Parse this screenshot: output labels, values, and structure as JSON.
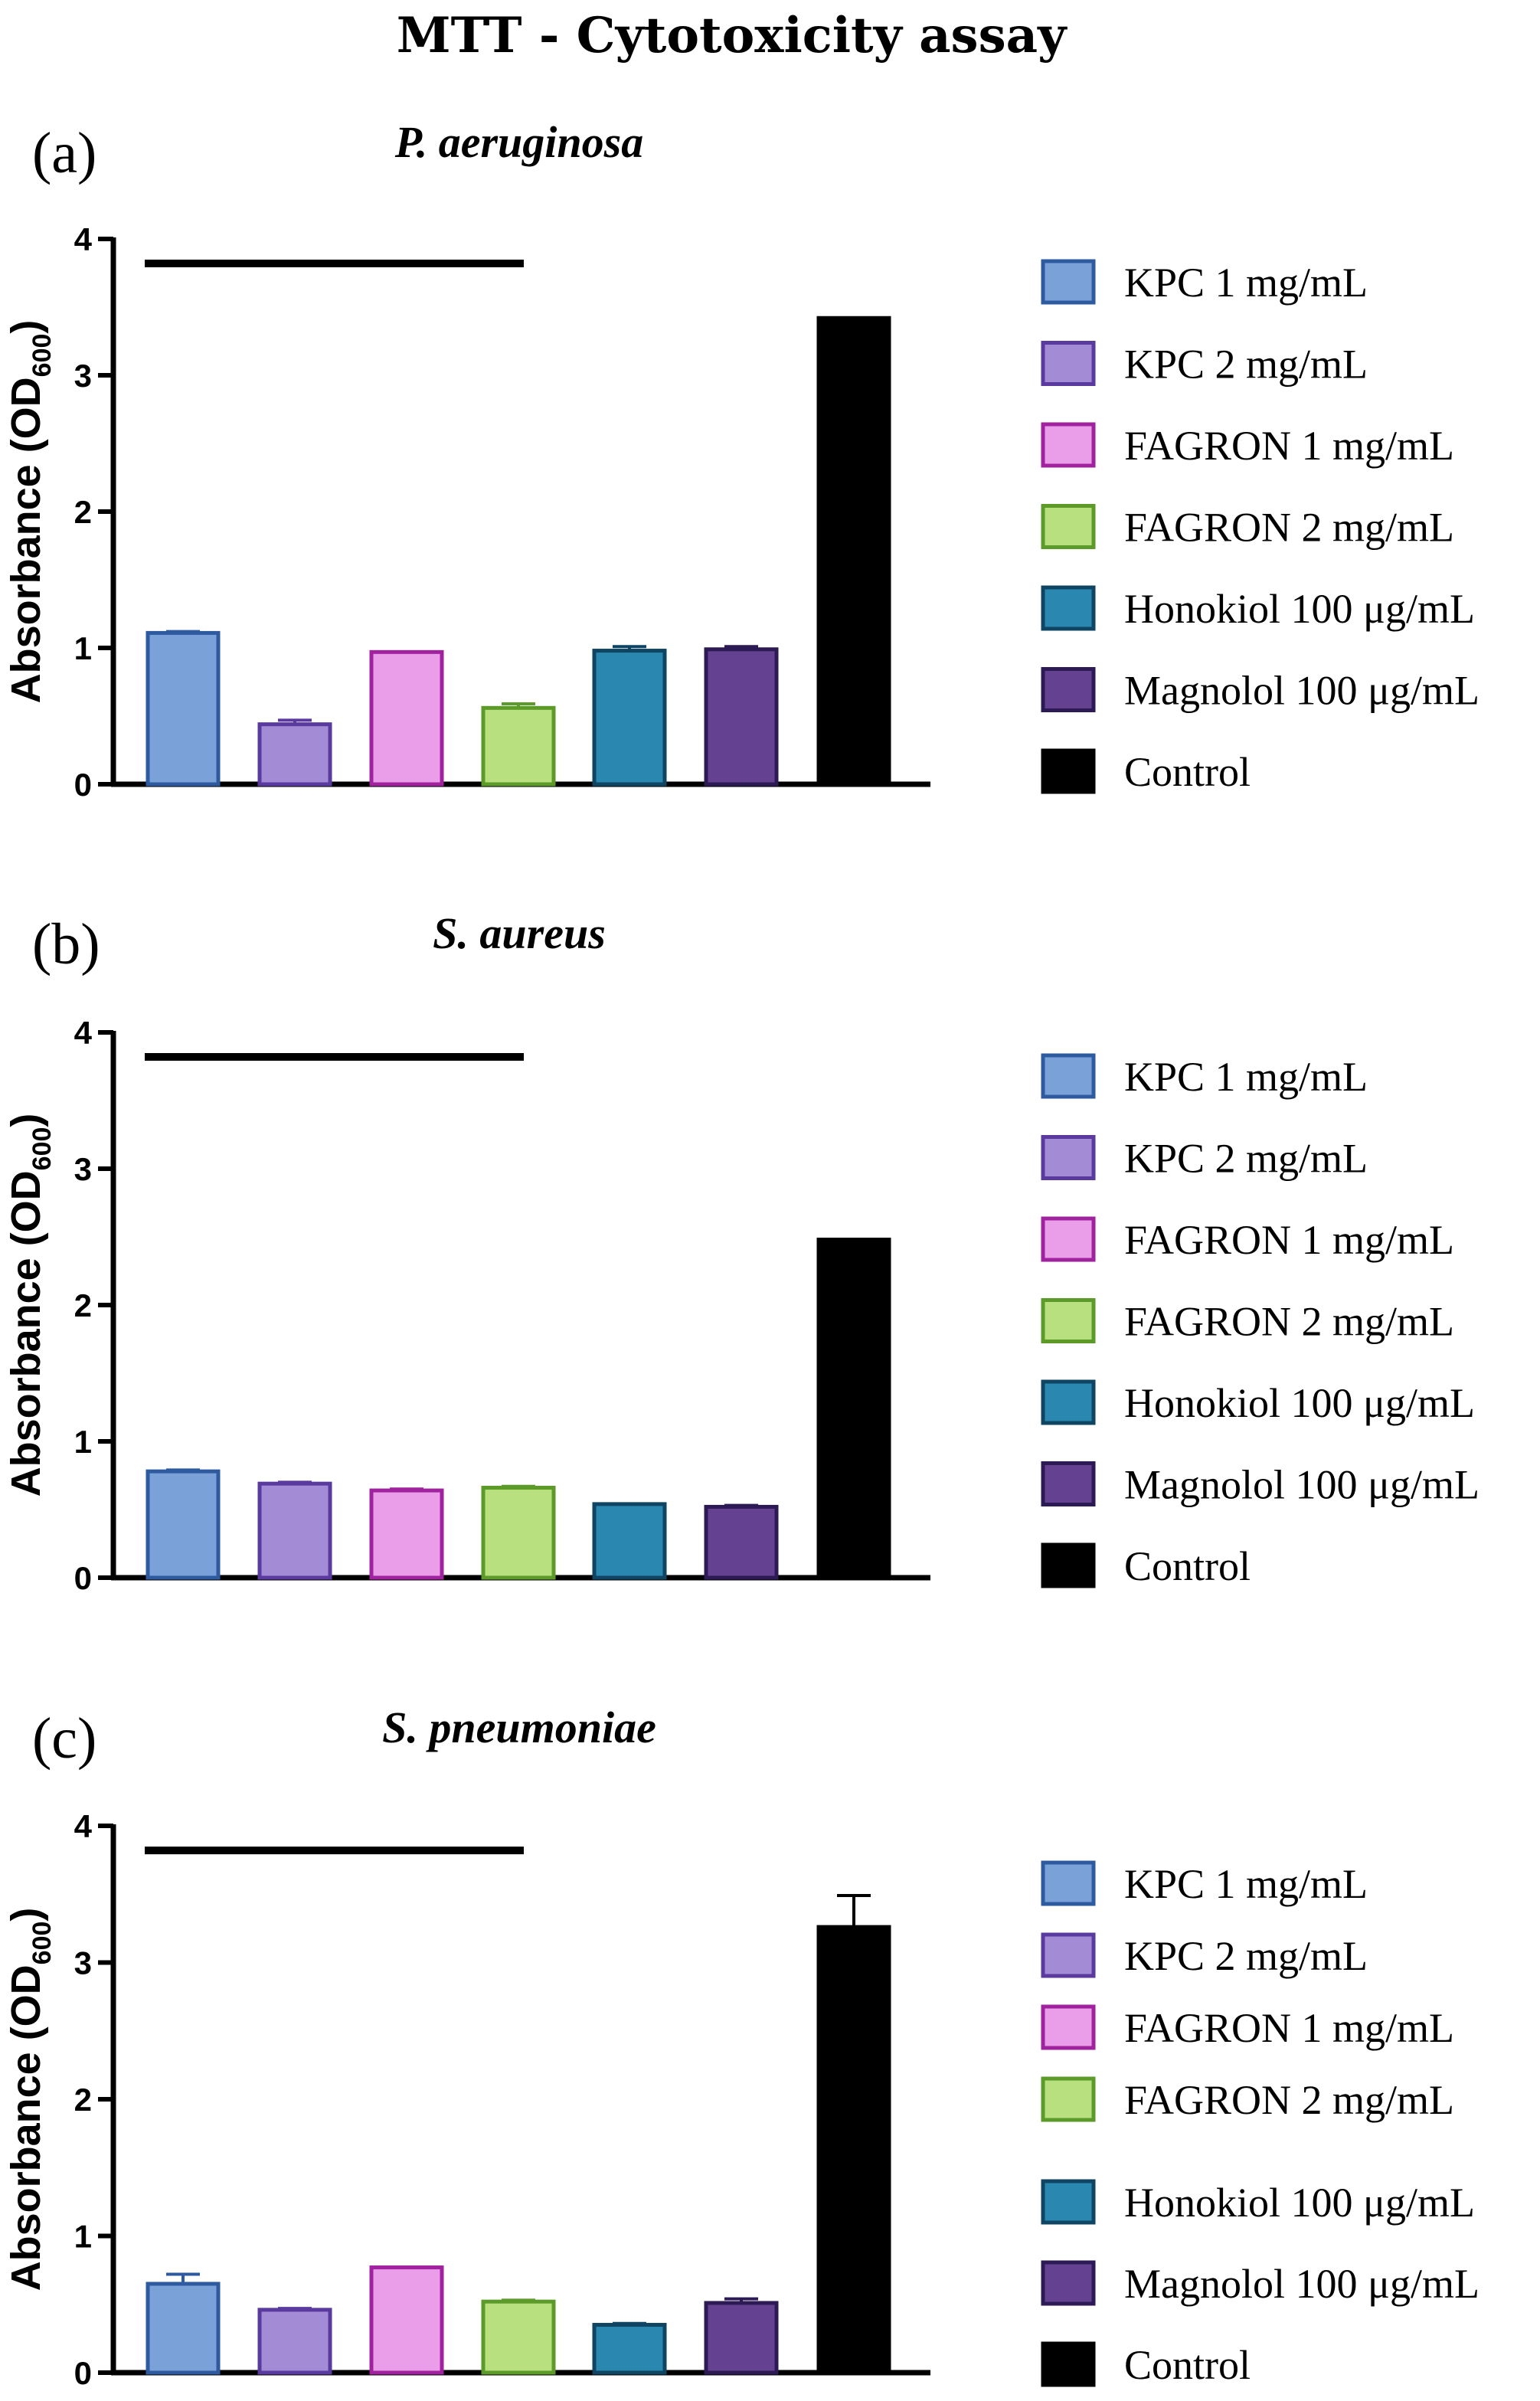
{
  "figure": {
    "title": "MTT - Cytotoxicity assay"
  },
  "chart_data": [
    {
      "type": "bar",
      "panel_label": "(a)",
      "title": "P. aeruginosa",
      "ylabel": "Absorbance (OD",
      "ylabel_sub": "600",
      "ylabel_suffix": ")",
      "ylim": [
        0,
        4
      ],
      "yticks": [
        "0",
        "1",
        "2",
        "3",
        "4"
      ],
      "categories": [
        "KPC 1 mg/mL",
        "KPC 2 mg/mL",
        "FAGRON 1 mg/mL",
        "FAGRON 2 mg/mL",
        "Honokiol 100 μg/mL",
        "Magnolol 100 μg/mL",
        "Control"
      ],
      "values": [
        1.11,
        0.44,
        0.97,
        0.56,
        0.98,
        0.99,
        3.42
      ],
      "errors": [
        0.01,
        0.03,
        0.0,
        0.03,
        0.03,
        0.02,
        0.0
      ],
      "bracket": {
        "from_category": 0,
        "to_category": 3,
        "y": 3.82
      },
      "legend": "right"
    },
    {
      "type": "bar",
      "panel_label": "(b)",
      "title": "S. aureus",
      "ylabel": "Absorbance (OD",
      "ylabel_sub": "600",
      "ylabel_suffix": ")",
      "ylim": [
        0,
        4
      ],
      "yticks": [
        "0",
        "1",
        "2",
        "3",
        "4"
      ],
      "categories": [
        "KPC 1 mg/mL",
        "KPC 2 mg/mL",
        "FAGRON 1 mg/mL",
        "FAGRON 2 mg/mL",
        "Honokiol 100 μg/mL",
        "Magnolol 100 μg/mL",
        "Control"
      ],
      "values": [
        0.78,
        0.69,
        0.64,
        0.66,
        0.54,
        0.52,
        2.48
      ],
      "errors": [
        0.01,
        0.01,
        0.01,
        0.01,
        0.0,
        0.01,
        0.0
      ],
      "bracket": {
        "from_category": 0,
        "to_category": 3,
        "y": 3.82
      },
      "legend": "right"
    },
    {
      "type": "bar",
      "panel_label": "(c)",
      "title": "S. pneumoniae",
      "ylabel": "Absorbance (OD",
      "ylabel_sub": "600",
      "ylabel_suffix": ")",
      "ylim": [
        0,
        4
      ],
      "yticks": [
        "0",
        "1",
        "2",
        "3",
        "4"
      ],
      "categories": [
        "KPC 1 mg/mL",
        "KPC 2 mg/mL",
        "FAGRON 1 mg/mL",
        "FAGRON 2 mg/mL",
        "Honokiol 100 μg/mL",
        "Magnolol 100 μg/mL",
        "Control"
      ],
      "values": [
        0.65,
        0.46,
        0.77,
        0.52,
        0.35,
        0.51,
        3.26
      ],
      "errors": [
        0.07,
        0.01,
        0.0,
        0.01,
        0.01,
        0.03,
        0.23
      ],
      "bracket": {
        "from_category": 0,
        "to_category": 3,
        "y": 3.82
      },
      "legend": "right"
    }
  ],
  "colors": {
    "fills": [
      "#7ba2d8",
      "#a48bd6",
      "#ea9de9",
      "#b8e07f",
      "#2a87b0",
      "#654291",
      "#000000"
    ],
    "strokes": [
      "#2e5aa0",
      "#5a3a9e",
      "#a0229e",
      "#5c9a2a",
      "#0f4463",
      "#2c1a55",
      "#000000"
    ]
  }
}
